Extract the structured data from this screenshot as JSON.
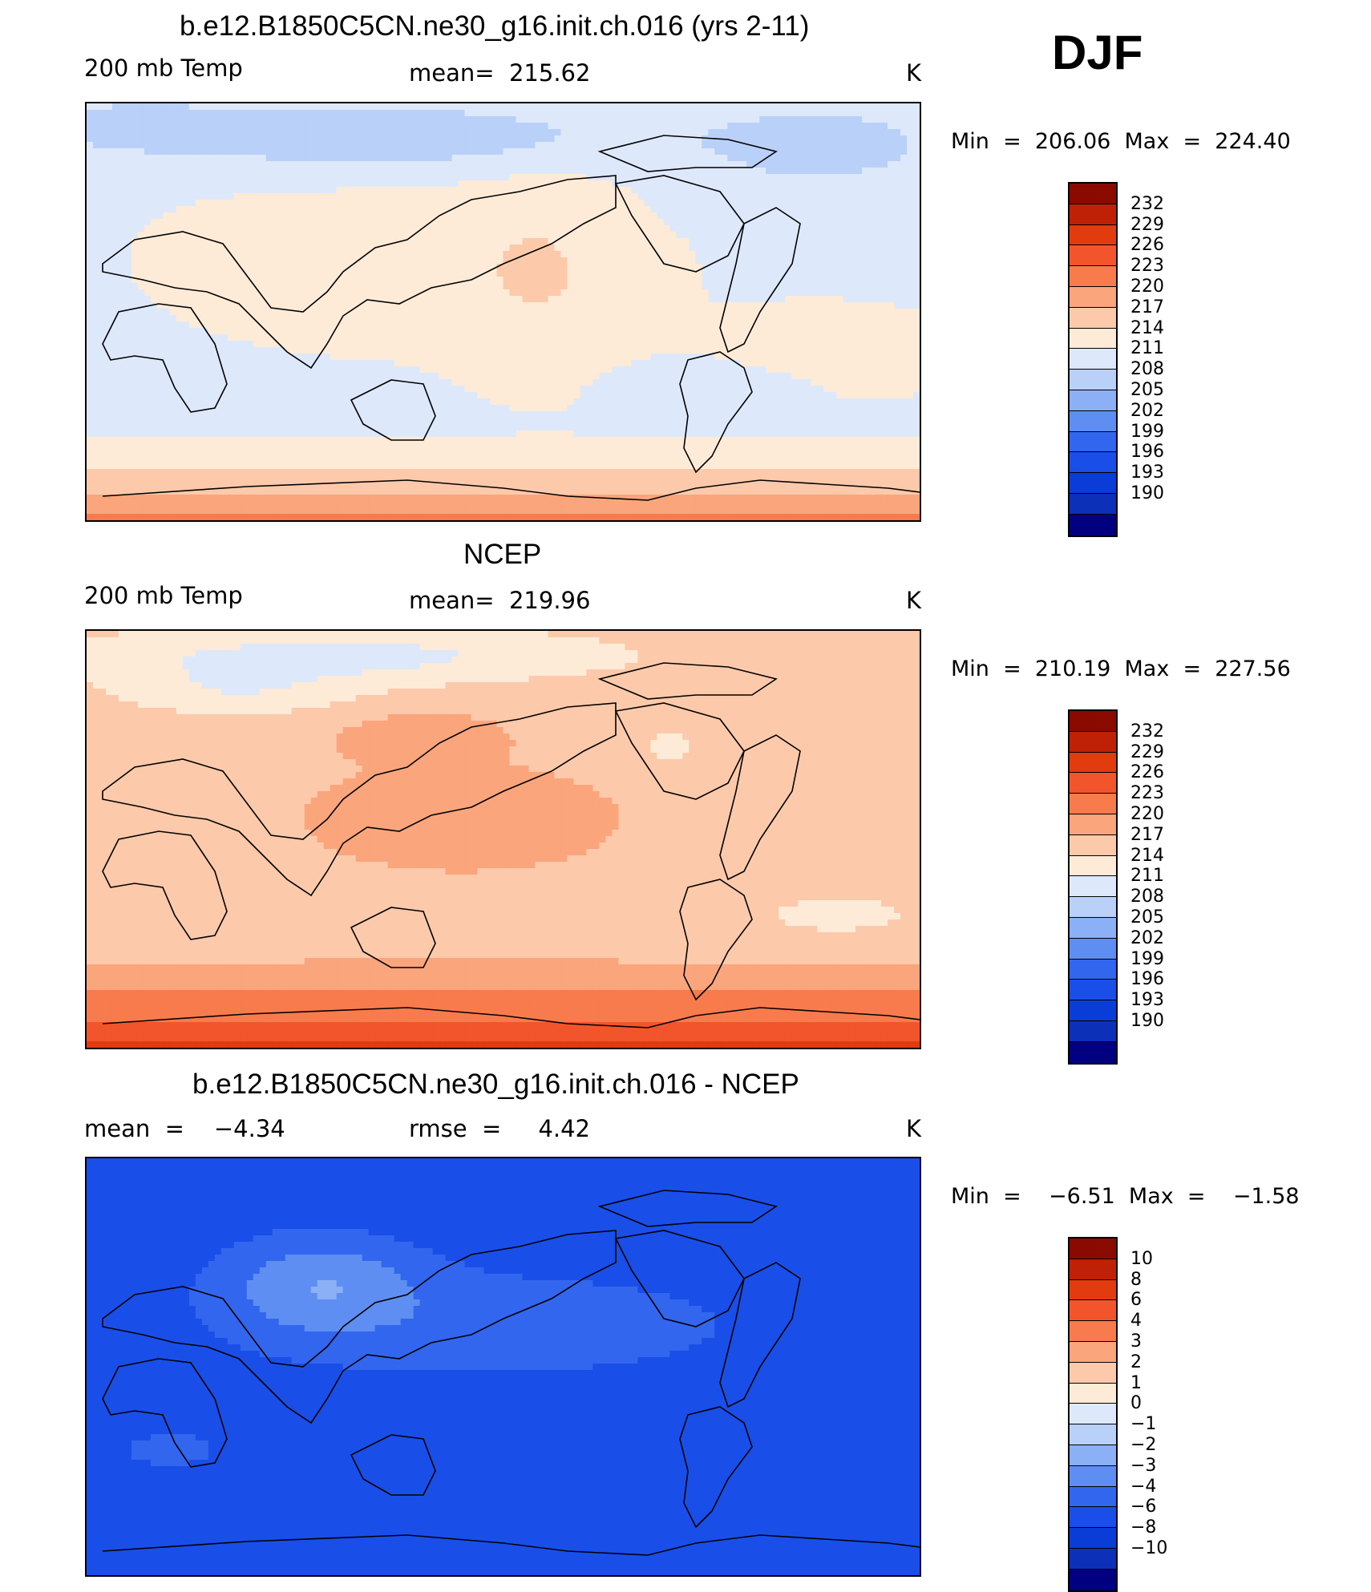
{
  "season": "DJF",
  "palettes": {
    "temp": [
      "#000080",
      "#0d30b8",
      "#0a3cd8",
      "#1a4ee8",
      "#3366ee",
      "#5f8ef3",
      "#8cb0f6",
      "#b9d0f8",
      "#dde9fb",
      "#fdebd8",
      "#fccaaa",
      "#fba57c",
      "#f87b4d",
      "#f2542b",
      "#e23b10",
      "#bf2106",
      "#8a0a00"
    ],
    "diff": [
      "#000080",
      "#0d30b8",
      "#0a3cd8",
      "#1a4ee8",
      "#3366ee",
      "#5f8ef3",
      "#8cb0f6",
      "#b9d0f8",
      "#dde9fb",
      "#fdebd8",
      "#fccaaa",
      "#fba57c",
      "#f87b4d",
      "#f2542b",
      "#e23b10",
      "#bf2106",
      "#8a0a00"
    ]
  },
  "panels": [
    {
      "id": "model",
      "title": "b.e12.B1850C5CN.ne30_g16.init.ch.016 (yrs 2-11)",
      "left_label": "200 mb Temp",
      "center_label": "mean=  215.62",
      "right_label": "K",
      "min_max": "Min  =  206.06  Max  =  224.40",
      "colorbar_labels": [
        "232",
        "229",
        "226",
        "223",
        "220",
        "217",
        "214",
        "211",
        "208",
        "205",
        "202",
        "199",
        "196",
        "193",
        "190"
      ],
      "palette": "temp",
      "field": "model",
      "map_description": "200 mb temperature, global Pacific-centered projection"
    },
    {
      "id": "obs",
      "title": "NCEP",
      "left_label": "200 mb Temp",
      "center_label": "mean=  219.96",
      "right_label": "K",
      "min_max": "Min  =  210.19  Max  =  227.56",
      "colorbar_labels": [
        "232",
        "229",
        "226",
        "223",
        "220",
        "217",
        "214",
        "211",
        "208",
        "205",
        "202",
        "199",
        "196",
        "193",
        "190"
      ],
      "palette": "temp",
      "field": "obs",
      "map_description": "200 mb temperature, global Pacific-centered projection"
    },
    {
      "id": "diff",
      "title": "b.e12.B1850C5CN.ne30_g16.init.ch.016 - NCEP",
      "left_label": "mean  =    −4.34",
      "center_label": "rmse  =     4.42",
      "right_label": "K",
      "min_max": "Min  =    −6.51  Max  =    −1.58",
      "colorbar_labels": [
        "10",
        "8",
        "6",
        "4",
        "3",
        "2",
        "1",
        "0",
        "−1",
        "−2",
        "−3",
        "−4",
        "−6",
        "−8",
        "−10"
      ],
      "palette": "diff",
      "field": "diff",
      "map_description": "model minus NCEP 200 mb temperature difference"
    }
  ]
}
